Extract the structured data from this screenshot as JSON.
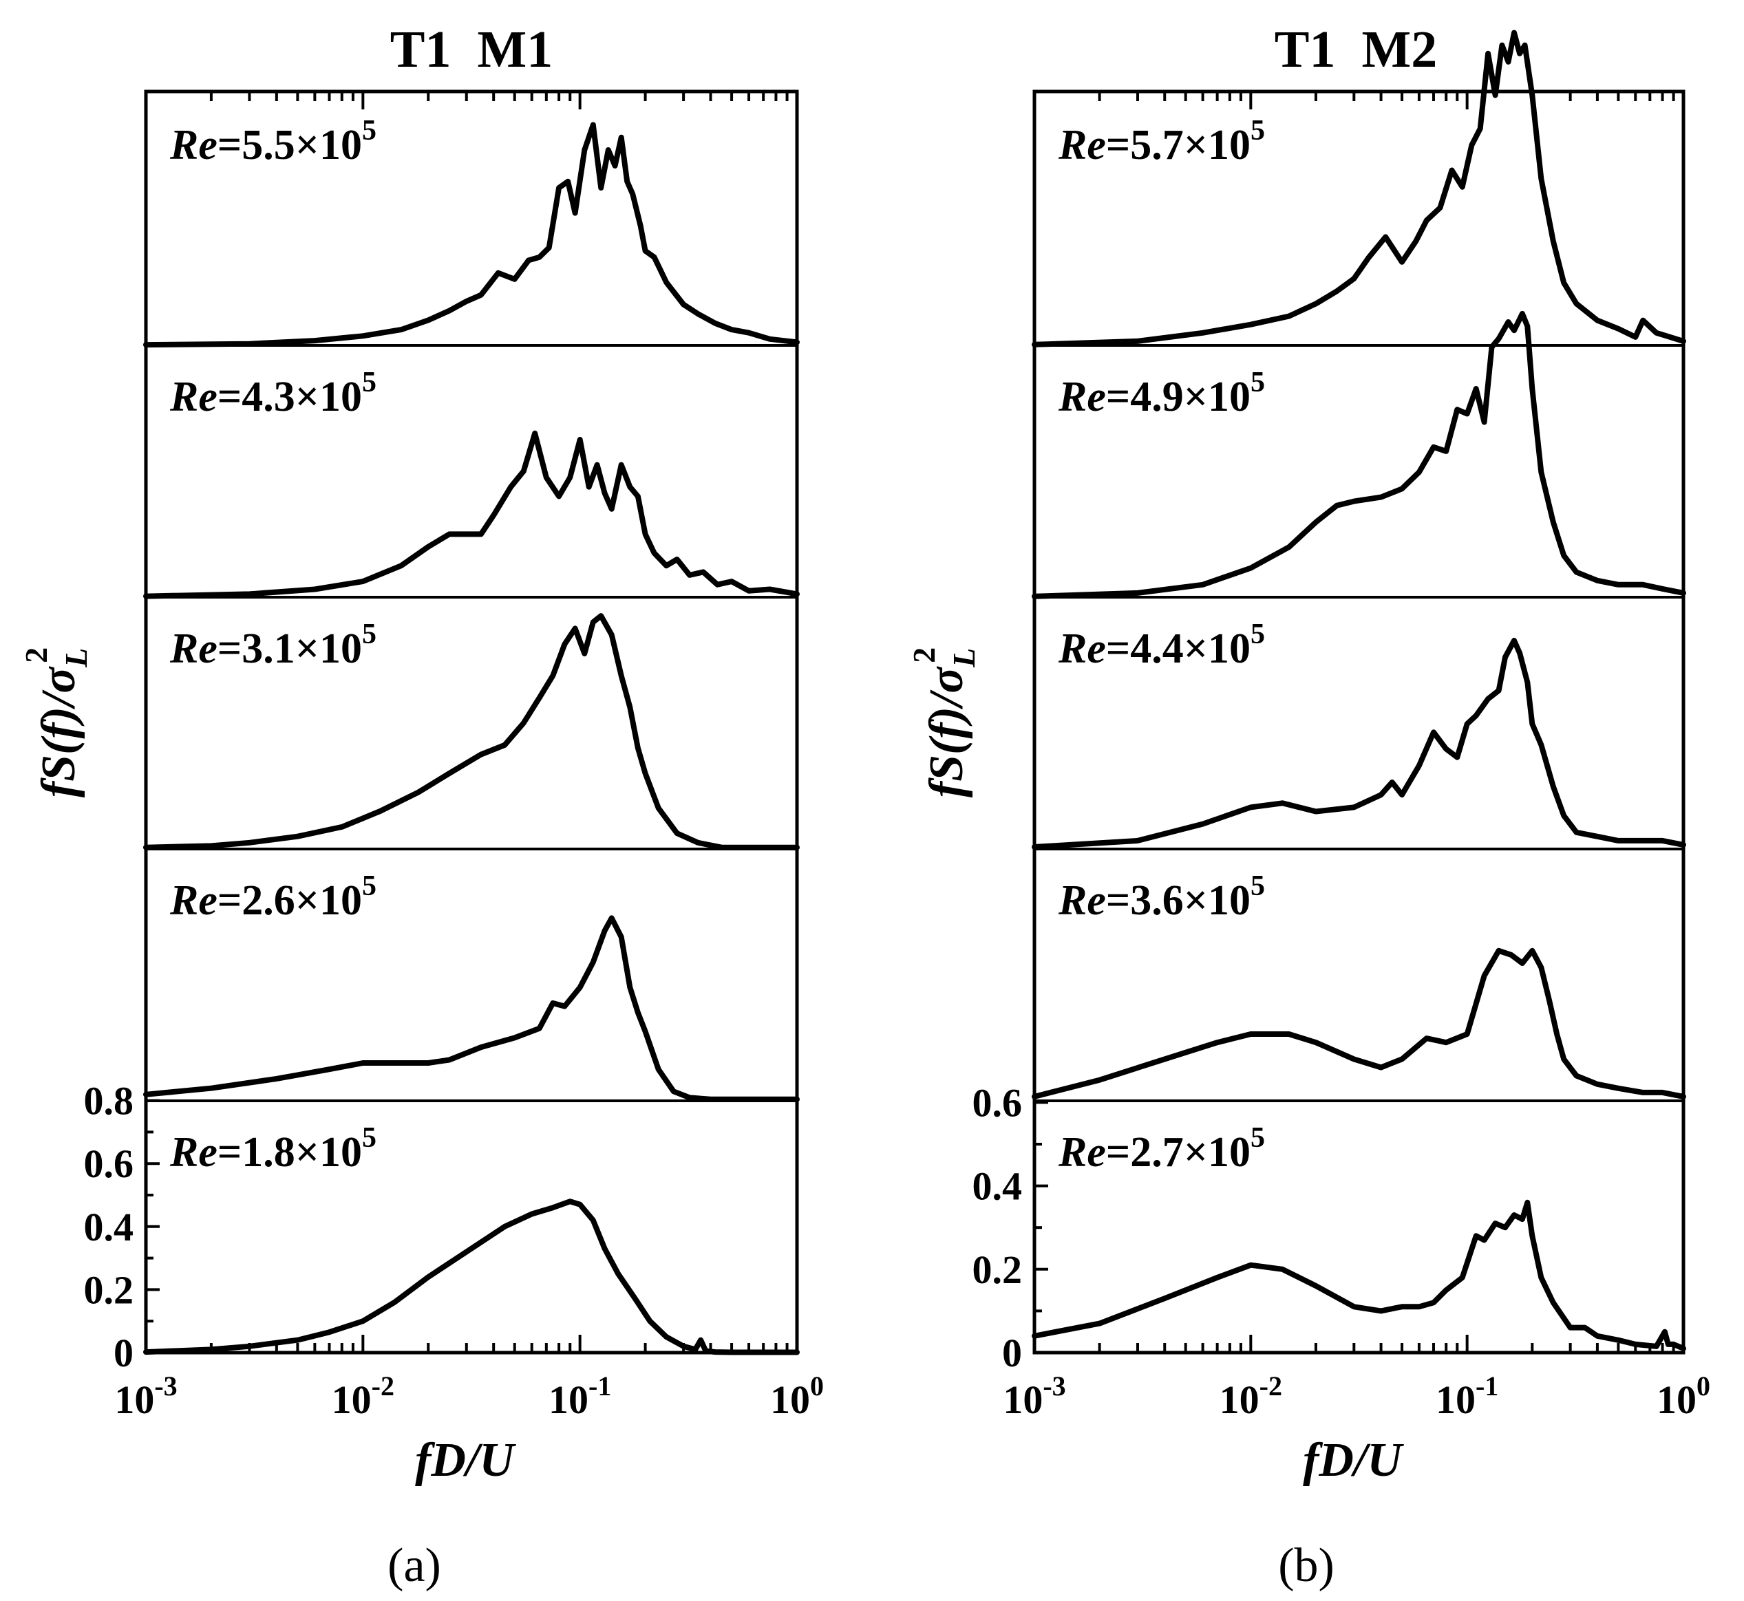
{
  "chart_data": [
    {
      "type": "line",
      "panel_label": "(a)",
      "title": "T1  M1",
      "xlabel": "fD/U",
      "ylabel": "fS(f)/σL²",
      "ylabel_parts": {
        "main": "fS(f)/σ",
        "sub": "L",
        "sup": "2"
      },
      "x_scale": "log",
      "xlim": [
        0.001,
        1
      ],
      "x_ticks": [
        0.001,
        0.01,
        0.1,
        1
      ],
      "x_tick_labels": [
        {
          "base": "10",
          "exp": "-3"
        },
        {
          "base": "10",
          "exp": "-2"
        },
        {
          "base": "10",
          "exp": "-1"
        },
        {
          "base": "10",
          "exp": "0"
        }
      ],
      "y_unit_range": [
        0,
        0.8
      ],
      "y_ticks": [
        0,
        0.2,
        0.4,
        0.6,
        0.8
      ],
      "y_tick_labels": [
        "0",
        "0.2",
        "0.4",
        "0.6",
        "0.8"
      ],
      "stack_offset": 0.8,
      "series": [
        {
          "name": "Re=1.8×10^5",
          "label": {
            "it": "Re",
            "rest": "=1.8×10",
            "exp": "5"
          },
          "x": [
            0.001,
            0.002,
            0.003,
            0.005,
            0.007,
            0.01,
            0.014,
            0.02,
            0.03,
            0.045,
            0.06,
            0.075,
            0.09,
            0.1,
            0.115,
            0.13,
            0.15,
            0.18,
            0.21,
            0.25,
            0.3,
            0.34,
            0.36,
            0.38,
            0.42,
            0.5,
            0.7,
            1.0
          ],
          "y": [
            0.002,
            0.01,
            0.02,
            0.04,
            0.065,
            0.1,
            0.16,
            0.24,
            0.32,
            0.4,
            0.44,
            0.46,
            0.48,
            0.47,
            0.42,
            0.33,
            0.25,
            0.17,
            0.1,
            0.05,
            0.02,
            0.01,
            0.04,
            0.005,
            0.002,
            0.001,
            0.001,
            0.001
          ]
        },
        {
          "name": "Re=2.6×10^5",
          "label": {
            "it": "Re",
            "rest": "=2.6×10",
            "exp": "5"
          },
          "x": [
            0.001,
            0.002,
            0.004,
            0.007,
            0.01,
            0.015,
            0.02,
            0.025,
            0.035,
            0.05,
            0.065,
            0.075,
            0.085,
            0.1,
            0.115,
            0.13,
            0.14,
            0.155,
            0.17,
            0.185,
            0.2,
            0.23,
            0.27,
            0.32,
            0.4,
            0.6,
            1.0
          ],
          "y": [
            0.02,
            0.04,
            0.07,
            0.1,
            0.12,
            0.12,
            0.12,
            0.13,
            0.17,
            0.2,
            0.23,
            0.31,
            0.3,
            0.36,
            0.44,
            0.54,
            0.58,
            0.52,
            0.36,
            0.28,
            0.22,
            0.1,
            0.03,
            0.01,
            0.005,
            0.005,
            0.005
          ]
        },
        {
          "name": "Re=3.1×10^5",
          "label": {
            "it": "Re",
            "rest": "=3.1×10",
            "exp": "5"
          },
          "x": [
            0.001,
            0.002,
            0.003,
            0.005,
            0.008,
            0.012,
            0.018,
            0.025,
            0.035,
            0.045,
            0.055,
            0.065,
            0.075,
            0.085,
            0.095,
            0.105,
            0.115,
            0.125,
            0.14,
            0.155,
            0.17,
            0.185,
            0.2,
            0.23,
            0.28,
            0.35,
            0.45,
            0.6,
            1.0
          ],
          "y": [
            0.005,
            0.01,
            0.02,
            0.04,
            0.07,
            0.12,
            0.18,
            0.24,
            0.3,
            0.33,
            0.4,
            0.48,
            0.55,
            0.65,
            0.7,
            0.62,
            0.72,
            0.74,
            0.68,
            0.55,
            0.45,
            0.32,
            0.24,
            0.13,
            0.05,
            0.02,
            0.005,
            0.005,
            0.005
          ]
        },
        {
          "name": "Re=4.3×10^5",
          "label": {
            "it": "Re",
            "rest": "=4.3×10",
            "exp": "5"
          },
          "x": [
            0.001,
            0.003,
            0.006,
            0.01,
            0.015,
            0.02,
            0.025,
            0.03,
            0.035,
            0.04,
            0.048,
            0.055,
            0.062,
            0.07,
            0.08,
            0.09,
            0.1,
            0.11,
            0.12,
            0.13,
            0.14,
            0.155,
            0.17,
            0.185,
            0.2,
            0.22,
            0.25,
            0.28,
            0.32,
            0.37,
            0.43,
            0.5,
            0.6,
            0.75,
            1.0
          ],
          "y": [
            0.003,
            0.01,
            0.025,
            0.05,
            0.1,
            0.16,
            0.2,
            0.2,
            0.2,
            0.26,
            0.35,
            0.4,
            0.52,
            0.38,
            0.32,
            0.38,
            0.5,
            0.35,
            0.42,
            0.33,
            0.28,
            0.42,
            0.35,
            0.32,
            0.2,
            0.14,
            0.1,
            0.12,
            0.07,
            0.08,
            0.04,
            0.05,
            0.02,
            0.025,
            0.01
          ]
        },
        {
          "name": "Re=5.5×10^5",
          "label": {
            "it": "Re",
            "rest": "=5.5×10",
            "exp": "5"
          },
          "x": [
            0.001,
            0.003,
            0.006,
            0.01,
            0.015,
            0.02,
            0.025,
            0.03,
            0.035,
            0.042,
            0.05,
            0.058,
            0.065,
            0.072,
            0.08,
            0.088,
            0.095,
            0.105,
            0.115,
            0.125,
            0.135,
            0.145,
            0.155,
            0.165,
            0.175,
            0.19,
            0.2,
            0.22,
            0.25,
            0.3,
            0.35,
            0.42,
            0.5,
            0.6,
            0.75,
            1.0
          ],
          "y": [
            0.002,
            0.005,
            0.015,
            0.03,
            0.05,
            0.08,
            0.11,
            0.14,
            0.16,
            0.23,
            0.21,
            0.27,
            0.28,
            0.31,
            0.5,
            0.52,
            0.42,
            0.62,
            0.7,
            0.5,
            0.62,
            0.57,
            0.66,
            0.52,
            0.48,
            0.38,
            0.3,
            0.28,
            0.2,
            0.13,
            0.1,
            0.07,
            0.05,
            0.04,
            0.02,
            0.01
          ]
        }
      ]
    },
    {
      "type": "line",
      "panel_label": "(b)",
      "title": "T1  M2",
      "xlabel": "fD/U",
      "ylabel": "fS(f)/σL²",
      "ylabel_parts": {
        "main": "fS(f)/σ",
        "sub": "L",
        "sup": "2"
      },
      "x_scale": "log",
      "xlim": [
        0.001,
        1
      ],
      "x_ticks": [
        0.001,
        0.01,
        0.1,
        1
      ],
      "x_tick_labels": [
        {
          "base": "10",
          "exp": "-3"
        },
        {
          "base": "10",
          "exp": "-2"
        },
        {
          "base": "10",
          "exp": "-1"
        },
        {
          "base": "10",
          "exp": "0"
        }
      ],
      "y_unit_range": [
        0,
        0.6
      ],
      "y_ticks": [
        0,
        0.2,
        0.4,
        0.6
      ],
      "y_tick_labels": [
        "0",
        "0.2",
        "0.4",
        "0.6"
      ],
      "stack_offset": 0.6,
      "series": [
        {
          "name": "Re=2.7×10^5",
          "label": {
            "it": "Re",
            "rest": "=2.7×10",
            "exp": "5"
          },
          "x": [
            0.001,
            0.002,
            0.004,
            0.007,
            0.01,
            0.014,
            0.02,
            0.03,
            0.04,
            0.05,
            0.06,
            0.07,
            0.08,
            0.095,
            0.11,
            0.12,
            0.135,
            0.15,
            0.165,
            0.18,
            0.19,
            0.2,
            0.22,
            0.25,
            0.3,
            0.35,
            0.4,
            0.5,
            0.6,
            0.75,
            0.82,
            0.85,
            0.9,
            1.0
          ],
          "y": [
            0.04,
            0.07,
            0.13,
            0.18,
            0.21,
            0.2,
            0.16,
            0.11,
            0.1,
            0.11,
            0.11,
            0.12,
            0.15,
            0.18,
            0.28,
            0.27,
            0.31,
            0.3,
            0.33,
            0.32,
            0.36,
            0.28,
            0.18,
            0.12,
            0.06,
            0.06,
            0.04,
            0.03,
            0.02,
            0.015,
            0.05,
            0.02,
            0.02,
            0.01
          ]
        },
        {
          "name": "Re=3.6×10^5",
          "label": {
            "it": "Re",
            "rest": "=3.6×10",
            "exp": "5"
          },
          "x": [
            0.001,
            0.002,
            0.004,
            0.007,
            0.01,
            0.015,
            0.02,
            0.03,
            0.04,
            0.05,
            0.065,
            0.08,
            0.1,
            0.12,
            0.14,
            0.16,
            0.18,
            0.2,
            0.22,
            0.24,
            0.26,
            0.28,
            0.32,
            0.4,
            0.5,
            0.65,
            0.8,
            1.0
          ],
          "y": [
            0.01,
            0.05,
            0.1,
            0.14,
            0.16,
            0.16,
            0.14,
            0.1,
            0.08,
            0.1,
            0.15,
            0.14,
            0.16,
            0.3,
            0.36,
            0.35,
            0.33,
            0.36,
            0.32,
            0.24,
            0.16,
            0.1,
            0.06,
            0.04,
            0.03,
            0.02,
            0.02,
            0.01
          ]
        },
        {
          "name": "Re=4.4×10^5",
          "label": {
            "it": "Re",
            "rest": "=4.4×10",
            "exp": "5"
          },
          "x": [
            0.001,
            0.003,
            0.006,
            0.01,
            0.014,
            0.02,
            0.03,
            0.04,
            0.045,
            0.05,
            0.06,
            0.07,
            0.08,
            0.09,
            0.1,
            0.11,
            0.125,
            0.14,
            0.15,
            0.165,
            0.175,
            0.19,
            0.2,
            0.22,
            0.25,
            0.28,
            0.32,
            0.4,
            0.5,
            0.6,
            0.8,
            1.0
          ],
          "y": [
            0.005,
            0.02,
            0.06,
            0.1,
            0.11,
            0.09,
            0.1,
            0.13,
            0.16,
            0.13,
            0.2,
            0.28,
            0.24,
            0.22,
            0.3,
            0.32,
            0.36,
            0.38,
            0.46,
            0.5,
            0.47,
            0.4,
            0.3,
            0.25,
            0.15,
            0.08,
            0.04,
            0.03,
            0.02,
            0.02,
            0.02,
            0.01
          ]
        },
        {
          "name": "Re=4.9×10^5",
          "label": {
            "it": "Re",
            "rest": "=4.9×10",
            "exp": "5"
          },
          "x": [
            0.001,
            0.003,
            0.006,
            0.01,
            0.015,
            0.02,
            0.025,
            0.03,
            0.04,
            0.05,
            0.06,
            0.07,
            0.08,
            0.09,
            0.1,
            0.11,
            0.12,
            0.13,
            0.14,
            0.155,
            0.165,
            0.18,
            0.19,
            0.2,
            0.22,
            0.25,
            0.28,
            0.32,
            0.4,
            0.5,
            0.65,
            0.8,
            1.0
          ],
          "y": [
            0.002,
            0.01,
            0.03,
            0.07,
            0.12,
            0.18,
            0.22,
            0.23,
            0.24,
            0.26,
            0.3,
            0.36,
            0.35,
            0.45,
            0.44,
            0.5,
            0.42,
            0.6,
            0.62,
            0.66,
            0.64,
            0.68,
            0.65,
            0.5,
            0.3,
            0.18,
            0.1,
            0.06,
            0.04,
            0.03,
            0.03,
            0.02,
            0.01
          ]
        },
        {
          "name": "Re=5.7×10^5",
          "label": {
            "it": "Re",
            "rest": "=5.7×10",
            "exp": "5"
          },
          "x": [
            0.001,
            0.003,
            0.006,
            0.01,
            0.015,
            0.02,
            0.025,
            0.03,
            0.035,
            0.042,
            0.05,
            0.058,
            0.065,
            0.075,
            0.085,
            0.095,
            0.105,
            0.115,
            0.125,
            0.135,
            0.145,
            0.155,
            0.165,
            0.175,
            0.185,
            0.2,
            0.22,
            0.25,
            0.28,
            0.32,
            0.4,
            0.5,
            0.6,
            0.65,
            0.75,
            1.0
          ],
          "y": [
            0.002,
            0.01,
            0.03,
            0.05,
            0.07,
            0.1,
            0.13,
            0.16,
            0.21,
            0.26,
            0.2,
            0.25,
            0.3,
            0.33,
            0.42,
            0.38,
            0.48,
            0.52,
            0.7,
            0.6,
            0.72,
            0.68,
            0.75,
            0.7,
            0.72,
            0.6,
            0.4,
            0.25,
            0.15,
            0.1,
            0.06,
            0.04,
            0.02,
            0.06,
            0.03,
            0.01
          ]
        }
      ]
    }
  ]
}
